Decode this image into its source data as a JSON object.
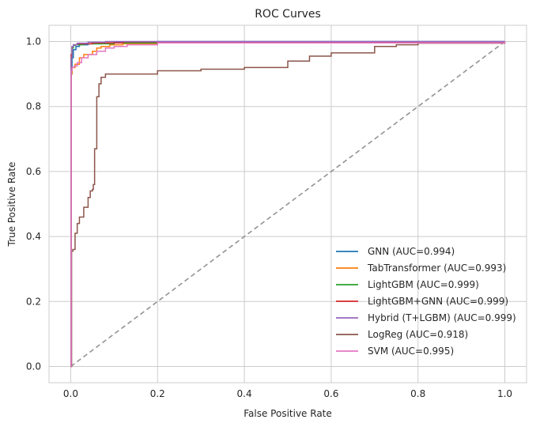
{
  "chart_data": {
    "type": "line",
    "title": "ROC Curves",
    "xlabel": "False Positive Rate",
    "ylabel": "True Positive Rate",
    "xlim": [
      -0.05,
      1.05
    ],
    "ylim": [
      -0.05,
      1.05
    ],
    "xticks": [
      "0.0",
      "0.2",
      "0.4",
      "0.6",
      "0.8",
      "1.0"
    ],
    "yticks": [
      "0.0",
      "0.2",
      "0.4",
      "0.6",
      "0.8",
      "1.0"
    ],
    "grid": true,
    "legend_position": "lower-right",
    "diagonal": {
      "x": [
        0,
        1
      ],
      "y": [
        0,
        1
      ],
      "color": "#939393",
      "style": "dashed"
    },
    "series": [
      {
        "name": "GNN (AUC=0.994)",
        "color": "#1f77b4",
        "x": [
          0,
          0.001,
          0.003,
          0.006,
          0.012,
          0.02,
          0.04,
          0.07,
          0.1,
          0.2,
          1.0
        ],
        "y": [
          0,
          0.9,
          0.95,
          0.975,
          0.985,
          0.99,
          0.993,
          0.996,
          0.998,
          1.0,
          1.0
        ]
      },
      {
        "name": "TabTransformer (AUC=0.993)",
        "color": "#ff7f0e",
        "x": [
          0,
          0.001,
          0.003,
          0.01,
          0.02,
          0.03,
          0.05,
          0.06,
          0.07,
          0.09,
          0.12,
          0.2,
          0.42,
          1.0
        ],
        "y": [
          0,
          0.9,
          0.92,
          0.93,
          0.95,
          0.96,
          0.97,
          0.98,
          0.985,
          0.99,
          0.993,
          0.996,
          0.998,
          1.0
        ]
      },
      {
        "name": "LightGBM (AUC=0.999)",
        "color": "#2ca02c",
        "x": [
          0,
          0.001,
          0.003,
          0.006,
          0.01,
          0.03,
          0.1,
          0.25,
          1.0
        ],
        "y": [
          0,
          0.95,
          0.98,
          0.988,
          0.99,
          0.993,
          0.996,
          0.998,
          1.0
        ]
      },
      {
        "name": "LightGBM+GNN (AUC=0.999)",
        "color": "#d62728",
        "x": [
          0,
          0.001,
          0.003,
          0.006,
          0.015,
          0.05,
          0.12,
          1.0
        ],
        "y": [
          0,
          0.96,
          0.985,
          0.99,
          0.993,
          0.996,
          0.999,
          1.0
        ]
      },
      {
        "name": "Hybrid (T+LGBM) (AUC=0.999)",
        "color": "#9467bd",
        "x": [
          0,
          0.001,
          0.003,
          0.006,
          0.015,
          0.04,
          0.08,
          1.0
        ],
        "y": [
          0,
          0.95,
          0.985,
          0.99,
          0.995,
          0.998,
          1.0,
          1.0
        ]
      },
      {
        "name": "LogReg (AUC=0.918)",
        "color": "#8c564b",
        "x": [
          0,
          0.002,
          0.005,
          0.01,
          0.015,
          0.02,
          0.03,
          0.04,
          0.045,
          0.05,
          0.052,
          0.055,
          0.06,
          0.065,
          0.07,
          0.08,
          0.12,
          0.2,
          0.3,
          0.4,
          0.5,
          0.55,
          0.6,
          0.65,
          0.7,
          0.75,
          0.8,
          1.0
        ],
        "y": [
          0,
          0.355,
          0.36,
          0.41,
          0.44,
          0.46,
          0.49,
          0.52,
          0.54,
          0.545,
          0.56,
          0.67,
          0.83,
          0.87,
          0.89,
          0.9,
          0.9,
          0.91,
          0.915,
          0.92,
          0.94,
          0.955,
          0.965,
          0.965,
          0.985,
          0.99,
          0.995,
          1.0
        ]
      },
      {
        "name": "SVM (AUC=0.995)",
        "color": "#e377c2",
        "x": [
          0,
          0.001,
          0.003,
          0.008,
          0.015,
          0.025,
          0.04,
          0.06,
          0.08,
          0.1,
          0.13,
          0.2,
          1.0
        ],
        "y": [
          0,
          0.91,
          0.92,
          0.925,
          0.935,
          0.95,
          0.96,
          0.97,
          0.98,
          0.985,
          0.99,
          0.996,
          1.0
        ]
      }
    ]
  }
}
